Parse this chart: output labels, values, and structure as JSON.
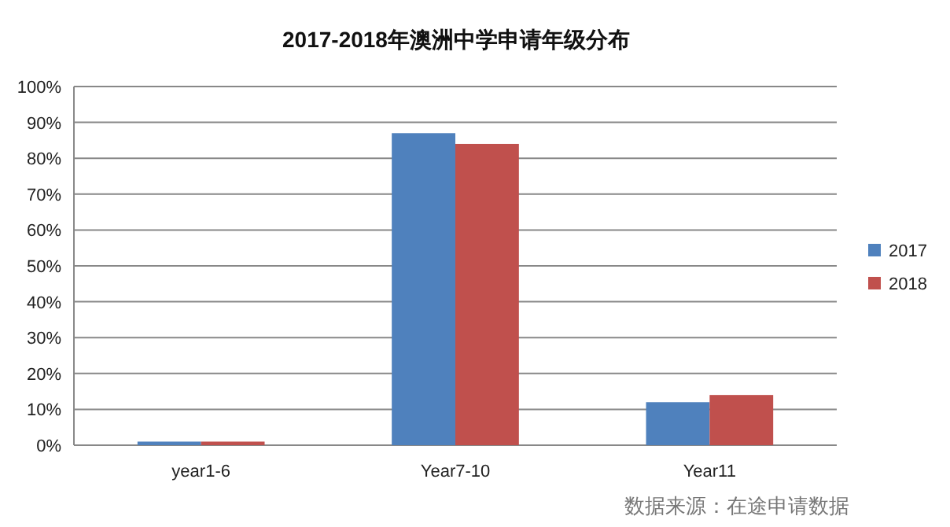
{
  "chart_data": {
    "type": "bar",
    "title": "2017-2018年澳洲中学申请年级分布",
    "categories": [
      "year1-6",
      "Year7-10",
      "Year11"
    ],
    "series": [
      {
        "name": "2017",
        "color": "#4f81bd",
        "values": [
          1,
          87,
          12
        ]
      },
      {
        "name": "2018",
        "color": "#c0504d",
        "values": [
          1,
          84,
          14
        ]
      }
    ],
    "ylim": [
      0,
      100
    ],
    "yticks": [
      {
        "value": 0,
        "label": "0%"
      },
      {
        "value": 10,
        "label": "10%"
      },
      {
        "value": 20,
        "label": "20%"
      },
      {
        "value": 30,
        "label": "30%"
      },
      {
        "value": 40,
        "label": "40%"
      },
      {
        "value": 50,
        "label": "50%"
      },
      {
        "value": 60,
        "label": "60%"
      },
      {
        "value": 70,
        "label": "70%"
      },
      {
        "value": 80,
        "label": "80%"
      },
      {
        "value": 90,
        "label": "90%"
      },
      {
        "value": 100,
        "label": "100%"
      }
    ],
    "grid": "y",
    "legend": "right",
    "annotations": [
      "数据来源：在途申请数据"
    ]
  }
}
